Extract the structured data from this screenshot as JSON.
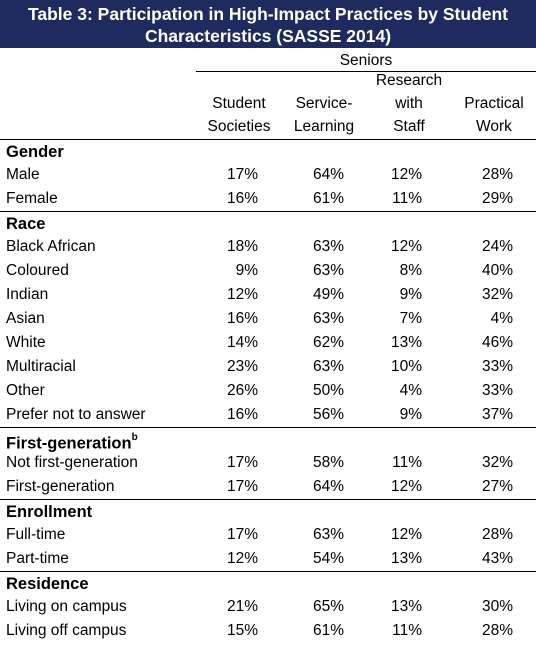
{
  "title": {
    "line1": "Table 3: Participation in High-Impact Practices by Student",
    "line2": "Characteristics (SASSE 2014)"
  },
  "header": {
    "group": "Seniors",
    "columns": [
      {
        "lines": [
          "Student",
          "Societies"
        ]
      },
      {
        "lines": [
          "Service-",
          "Learning"
        ]
      },
      {
        "lines": [
          "Research",
          "with",
          "Staff"
        ]
      },
      {
        "lines": [
          "Practical",
          "Work"
        ]
      }
    ]
  },
  "sections": [
    {
      "name": "Gender",
      "sup": "",
      "rows": [
        {
          "label": "Male",
          "values": [
            "17%",
            "64%",
            "12%",
            "28%"
          ]
        },
        {
          "label": "Female",
          "values": [
            "16%",
            "61%",
            "11%",
            "29%"
          ]
        }
      ]
    },
    {
      "name": "Race",
      "sup": "",
      "rows": [
        {
          "label": "Black African",
          "values": [
            "18%",
            "63%",
            "12%",
            "24%"
          ]
        },
        {
          "label": "Coloured",
          "values": [
            "9%",
            "63%",
            "8%",
            "40%"
          ]
        },
        {
          "label": "Indian",
          "values": [
            "12%",
            "49%",
            "9%",
            "32%"
          ]
        },
        {
          "label": "Asian",
          "values": [
            "16%",
            "63%",
            "7%",
            "4%"
          ]
        },
        {
          "label": "White",
          "values": [
            "14%",
            "62%",
            "13%",
            "46%"
          ]
        },
        {
          "label": "Multiracial",
          "values": [
            "23%",
            "63%",
            "10%",
            "33%"
          ]
        },
        {
          "label": "Other",
          "values": [
            "26%",
            "50%",
            "4%",
            "33%"
          ]
        },
        {
          "label": "Prefer not to answer",
          "values": [
            "16%",
            "56%",
            "9%",
            "37%"
          ]
        }
      ]
    },
    {
      "name": "First-generation",
      "sup": "b",
      "rows": [
        {
          "label": "Not first-generation",
          "values": [
            "17%",
            "58%",
            "11%",
            "32%"
          ]
        },
        {
          "label": "First-generation",
          "values": [
            "17%",
            "64%",
            "12%",
            "27%"
          ]
        }
      ]
    },
    {
      "name": "Enrollment",
      "sup": "",
      "rows": [
        {
          "label": "Full-time",
          "values": [
            "17%",
            "63%",
            "12%",
            "28%"
          ]
        },
        {
          "label": "Part-time",
          "values": [
            "12%",
            "54%",
            "13%",
            "43%"
          ]
        }
      ]
    },
    {
      "name": "Residence",
      "sup": "",
      "rows": [
        {
          "label": "Living on campus",
          "values": [
            "21%",
            "65%",
            "13%",
            "30%"
          ]
        },
        {
          "label": "Living off campus",
          "values": [
            "15%",
            "61%",
            "11%",
            "28%"
          ]
        }
      ]
    }
  ]
}
